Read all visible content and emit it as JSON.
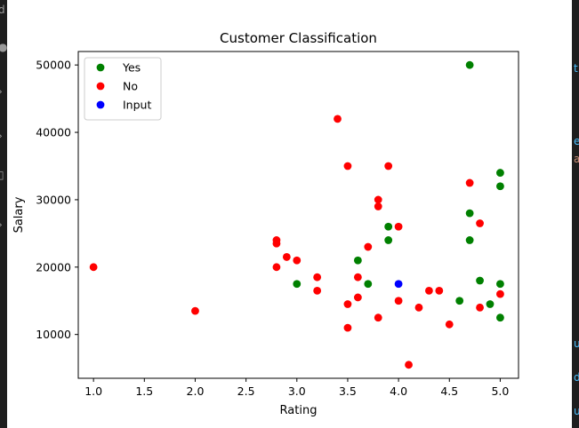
{
  "chart_data": {
    "type": "scatter",
    "title": "Customer Classification",
    "xlabel": "Rating",
    "ylabel": "Salary",
    "xlim": [
      0.85,
      5.18
    ],
    "ylim": [
      3500,
      52000
    ],
    "xticks": [
      1.0,
      1.5,
      2.0,
      2.5,
      3.0,
      3.5,
      4.0,
      4.5,
      5.0
    ],
    "xtick_labels": [
      "1.0",
      "1.5",
      "2.0",
      "2.5",
      "3.0",
      "3.5",
      "4.0",
      "4.5",
      "5.0"
    ],
    "yticks": [
      10000,
      20000,
      30000,
      40000,
      50000
    ],
    "ytick_labels": [
      "10000",
      "20000",
      "30000",
      "40000",
      "50000"
    ],
    "grid": false,
    "legend_position": "upper-left",
    "series": [
      {
        "name": "Yes",
        "color": "#008000",
        "points": [
          [
            4.7,
            50000
          ],
          [
            5.0,
            34000
          ],
          [
            5.0,
            32000
          ],
          [
            4.7,
            28000
          ],
          [
            3.9,
            26000
          ],
          [
            3.9,
            24000
          ],
          [
            4.7,
            24000
          ],
          [
            3.6,
            21000
          ],
          [
            3.0,
            17500
          ],
          [
            3.7,
            17500
          ],
          [
            4.8,
            18000
          ],
          [
            5.0,
            17500
          ],
          [
            4.6,
            15000
          ],
          [
            4.9,
            14500
          ],
          [
            5.0,
            12500
          ]
        ]
      },
      {
        "name": "No",
        "color": "#ff0000",
        "points": [
          [
            1.0,
            20000
          ],
          [
            2.0,
            13500
          ],
          [
            2.8,
            24000
          ],
          [
            2.8,
            23500
          ],
          [
            2.8,
            20000
          ],
          [
            2.9,
            21500
          ],
          [
            3.0,
            21000
          ],
          [
            3.2,
            18500
          ],
          [
            3.2,
            16500
          ],
          [
            3.4,
            42000
          ],
          [
            3.5,
            35000
          ],
          [
            3.5,
            14500
          ],
          [
            3.5,
            11000
          ],
          [
            3.6,
            18500
          ],
          [
            3.6,
            15500
          ],
          [
            3.7,
            23000
          ],
          [
            3.8,
            30000
          ],
          [
            3.8,
            29000
          ],
          [
            3.8,
            12500
          ],
          [
            3.9,
            35000
          ],
          [
            4.0,
            26000
          ],
          [
            4.0,
            15000
          ],
          [
            4.1,
            5500
          ],
          [
            4.2,
            14000
          ],
          [
            4.3,
            16500
          ],
          [
            4.4,
            16500
          ],
          [
            4.5,
            11500
          ],
          [
            4.7,
            32500
          ],
          [
            4.8,
            26500
          ],
          [
            4.8,
            14000
          ],
          [
            5.0,
            16000
          ]
        ]
      },
      {
        "name": "Input",
        "color": "#0000ff",
        "points": [
          [
            4.0,
            17500
          ]
        ]
      }
    ]
  },
  "side_glyphs": {
    "left": [
      "d",
      "●",
      "›",
      "›",
      "▯",
      "›"
    ],
    "right": [
      "t",
      "e",
      "a",
      "u",
      "d",
      "u"
    ]
  }
}
